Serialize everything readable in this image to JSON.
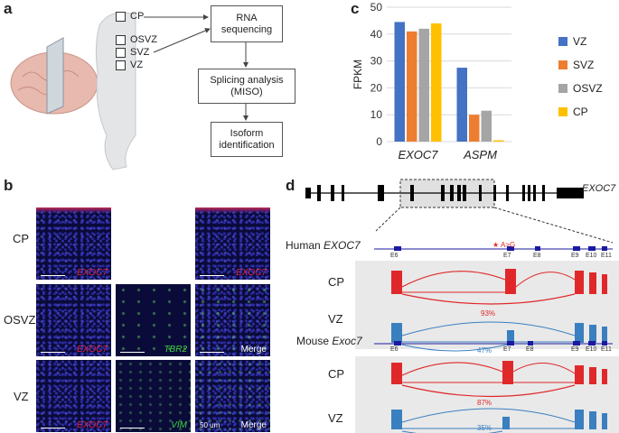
{
  "panels": {
    "a": "a",
    "b": "b",
    "c": "c",
    "d": "d"
  },
  "panel_a": {
    "zones": [
      "CP",
      "OSVZ",
      "SVZ",
      "VZ"
    ],
    "flow": [
      "RNA\nsequencing",
      "Splicing analysis\n(MISO)",
      "Isoform\nidentification"
    ]
  },
  "panel_b": {
    "rows": [
      "CP",
      "OSVZ",
      "VZ"
    ],
    "stains": {
      "exoc7": "EXOC7",
      "tbr2": "TBR2",
      "vim": "VIM",
      "merge": "Merge"
    },
    "scale_bar": "50 um",
    "colors": {
      "red": "#e0284a",
      "green": "#3ad43a"
    }
  },
  "panel_d": {
    "gene": "EXOC7",
    "human_label": "Human",
    "human_gene": "EXOC7",
    "mouse_label": "Mouse",
    "mouse_gene": "Exoc7",
    "exons": [
      "E6",
      "E7",
      "E8",
      "E9",
      "E10",
      "E11"
    ],
    "snp": "A>G",
    "tracks": [
      "CP",
      "VZ",
      "CP",
      "VZ"
    ],
    "psi": [
      "93%",
      "47%",
      "87%",
      "35%"
    ],
    "colors": {
      "cp": "#e0282a",
      "vz": "#3a7fc0",
      "exon": "#1a1aa0"
    }
  },
  "chart_data": {
    "type": "bar",
    "categories": [
      "EXOC7",
      "ASPM"
    ],
    "series": [
      {
        "name": "VZ",
        "values": [
          44.5,
          27.5
        ],
        "color": "#4472c4"
      },
      {
        "name": "SVZ",
        "values": [
          41,
          10
        ],
        "color": "#ed7d31"
      },
      {
        "name": "OSVZ",
        "values": [
          42,
          11.5
        ],
        "color": "#a5a5a5"
      },
      {
        "name": "CP",
        "values": [
          44,
          0.5
        ],
        "color": "#ffc000"
      }
    ],
    "ylabel": "FPKM",
    "ylim": [
      0,
      50
    ],
    "yticks": [
      0,
      10,
      20,
      30,
      40,
      50
    ],
    "grid": true,
    "legend": "right"
  }
}
